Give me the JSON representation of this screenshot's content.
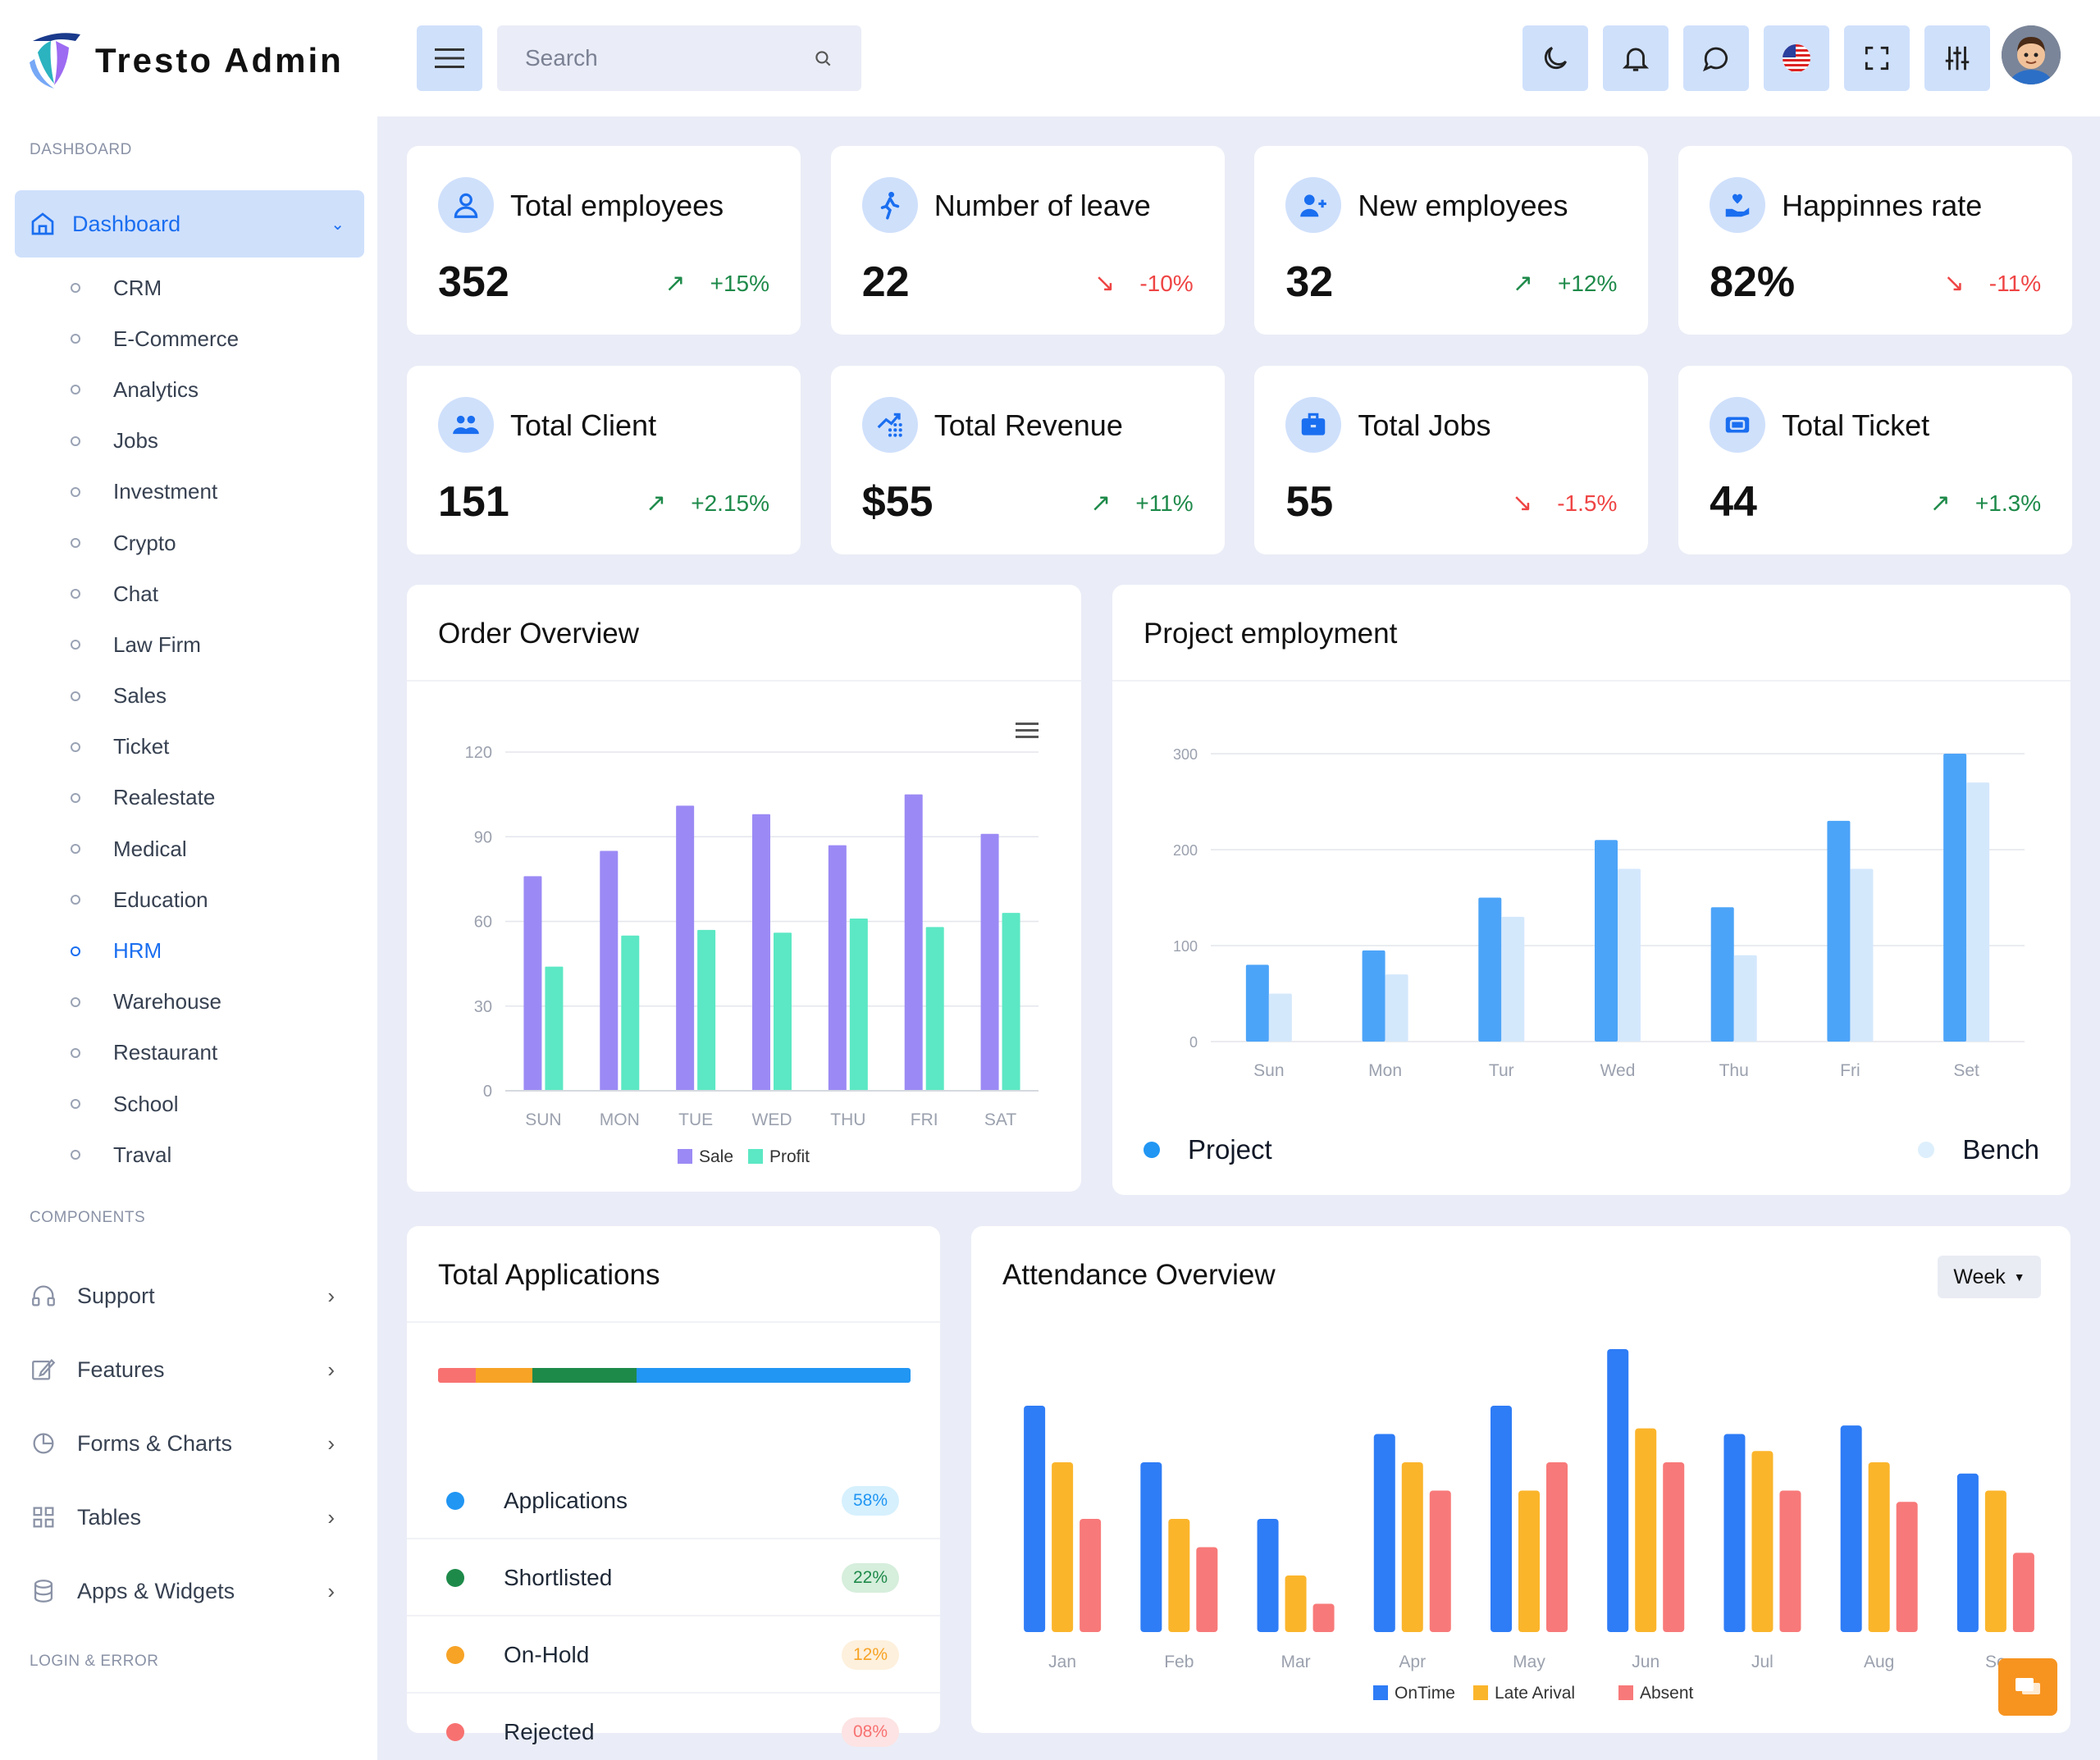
{
  "app": {
    "title": "Tresto Admin"
  },
  "search": {
    "placeholder": "Search"
  },
  "sidebar": {
    "dashboard_label": "DASHBOARD",
    "dashboard_item": "Dashboard",
    "sub_items": [
      "CRM",
      "E-Commerce",
      "Analytics",
      "Jobs",
      "Investment",
      "Crypto",
      "Chat",
      "Law Firm",
      "Sales",
      "Ticket",
      "Realestate",
      "Medical",
      "Education",
      "HRM",
      "Warehouse",
      "Restaurant",
      "School",
      "Traval"
    ],
    "active_sub": "HRM",
    "components_label": "COMPONENTS",
    "components": [
      {
        "label": "Support",
        "icon": "headphones-icon"
      },
      {
        "label": "Features",
        "icon": "edit-icon"
      },
      {
        "label": "Forms & Charts",
        "icon": "pie-chart-icon"
      },
      {
        "label": "Tables",
        "icon": "grid-icon"
      },
      {
        "label": "Apps & Widgets",
        "icon": "database-icon"
      }
    ],
    "login_label": "LOGIN & ERROR"
  },
  "topbar_icons": [
    "moon-icon",
    "bell-icon",
    "chat-icon",
    "us-flag-icon",
    "fullscreen-icon",
    "sliders-icon"
  ],
  "colors": {
    "primary": "#1a6ef0",
    "accent_bg": "#cfe0fb",
    "up": "#1e8a4a",
    "down": "#ef4444"
  },
  "stats": [
    {
      "title": "Total employees",
      "value": "352",
      "change": "+15%",
      "dir": "up",
      "icon": "user-icon"
    },
    {
      "title": "Number of leave",
      "value": "22",
      "change": "-10%",
      "dir": "down",
      "icon": "walking-person-icon"
    },
    {
      "title": "New employees",
      "value": "32",
      "change": "+12%",
      "dir": "up",
      "icon": "user-plus-icon"
    },
    {
      "title": "Happinnes rate",
      "value": "82%",
      "change": "-11%",
      "dir": "down",
      "icon": "heart-hand-icon"
    },
    {
      "title": "Total Client",
      "value": "151",
      "change": "+2.15%",
      "dir": "up",
      "icon": "users-icon"
    },
    {
      "title": "Total Revenue",
      "value": "$55",
      "change": "+11%",
      "dir": "up",
      "icon": "growth-chart-icon"
    },
    {
      "title": "Total Jobs",
      "value": "55",
      "change": "-1.5%",
      "dir": "down",
      "icon": "briefcase-icon"
    },
    {
      "title": "Total Ticket",
      "value": "44",
      "change": "+1.3%",
      "dir": "up",
      "icon": "ticket-icon"
    }
  ],
  "order_overview": {
    "title": "Order Overview"
  },
  "project_employment": {
    "title": "Project employment"
  },
  "total_applications": {
    "title": "Total Applications",
    "items": [
      {
        "label": "Applications",
        "pct": "58%",
        "color": "#2196f3",
        "bg": "#d6f0fd"
      },
      {
        "label": "Shortlisted",
        "pct": "22%",
        "color": "#1e8a4a",
        "bg": "#d6eedc"
      },
      {
        "label": "On-Hold",
        "pct": "12%",
        "color": "#f7a326",
        "bg": "#fdf0dc"
      },
      {
        "label": "Rejected",
        "pct": "08%",
        "color": "#f87171",
        "bg": "#fde3e3"
      }
    ],
    "bar_segments": [
      {
        "label": "Rejected",
        "share": 0.08,
        "color": "#f87171"
      },
      {
        "label": "On-Hold",
        "share": 0.12,
        "color": "#f7a326"
      },
      {
        "label": "Shortlisted",
        "share": 0.22,
        "color": "#1e8a4a"
      },
      {
        "label": "Applications",
        "share": 0.58,
        "color": "#2196f3"
      }
    ]
  },
  "attendance": {
    "title": "Attendance Overview",
    "range": "Week"
  },
  "chart_data": [
    {
      "type": "bar",
      "title": "Order Overview",
      "categories": [
        "SUN",
        "MON",
        "TUE",
        "WED",
        "THU",
        "FRI",
        "SAT"
      ],
      "series": [
        {
          "name": "Sale",
          "color": "#9b8af5",
          "values": [
            76,
            85,
            101,
            98,
            87,
            105,
            91
          ]
        },
        {
          "name": "Profit",
          "color": "#5ce8c4",
          "values": [
            44,
            55,
            57,
            56,
            61,
            58,
            63
          ]
        }
      ],
      "ylim": [
        0,
        120
      ],
      "yticks": [
        0,
        30,
        60,
        90,
        120
      ],
      "legend": "bottom"
    },
    {
      "type": "bar",
      "title": "Project employment",
      "categories": [
        "Sun",
        "Mon",
        "Tur",
        "Wed",
        "Thu",
        "Fri",
        "Set"
      ],
      "series": [
        {
          "name": "Project",
          "color": "#4ca4f8",
          "values": [
            80,
            95,
            150,
            210,
            140,
            230,
            300
          ]
        },
        {
          "name": "Bench",
          "color": "#d4e8fc",
          "values": [
            50,
            70,
            130,
            180,
            90,
            180,
            270
          ]
        }
      ],
      "ylim": [
        0,
        300
      ],
      "yticks": [
        0,
        100,
        200,
        300
      ],
      "legend": "bottom"
    },
    {
      "type": "bar",
      "title": "Attendance Overview",
      "categories": [
        "Jan",
        "Feb",
        "Mar",
        "Apr",
        "May",
        "Jun",
        "Jul",
        "Aug",
        "Se"
      ],
      "series": [
        {
          "name": "OnTime",
          "color": "#2e7cf6",
          "values": [
            80,
            60,
            40,
            70,
            80,
            100,
            70,
            73,
            56
          ]
        },
        {
          "name": "Late Arival",
          "color": "#fbb52b",
          "values": [
            60,
            40,
            20,
            60,
            50,
            72,
            64,
            60,
            50
          ]
        },
        {
          "name": "Absent",
          "color": "#f87979",
          "values": [
            40,
            30,
            10,
            50,
            60,
            60,
            50,
            46,
            28
          ]
        }
      ],
      "ylim": [
        0,
        100
      ],
      "legend": "bottom"
    }
  ]
}
